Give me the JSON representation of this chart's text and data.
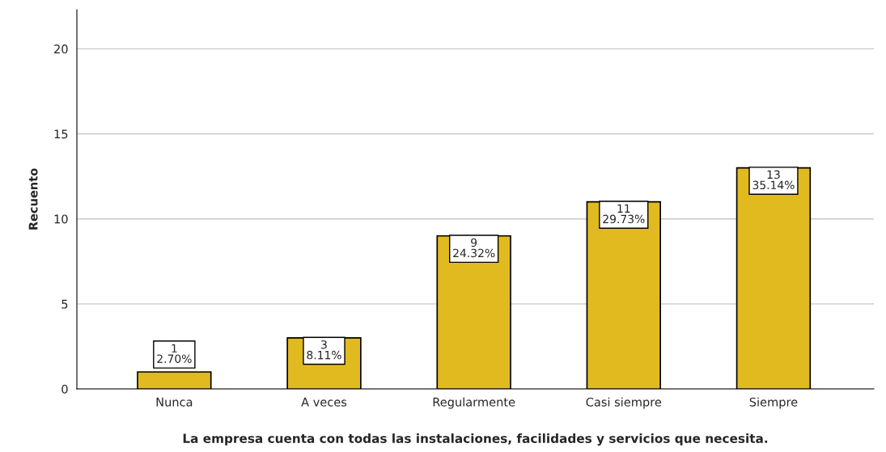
{
  "chart_data": {
    "type": "bar",
    "xlabel": "La empresa cuenta con todas las instalaciones, facilidades y servicios que necesita.",
    "ylabel": "Recuento",
    "categories": [
      "Nunca",
      "A veces",
      "Regularmente",
      "Casi siempre",
      "Siempre"
    ],
    "values": [
      1,
      3,
      9,
      11,
      13
    ],
    "color": "#e0ba1f",
    "value_labels": [
      "1\n2.70%",
      "3\n8.11%",
      "9\n24.32%",
      "11\n29.73%",
      "13\n35.14%"
    ],
    "ylim": [
      0,
      22.3
    ],
    "yticks": [
      0,
      5,
      10,
      15,
      20
    ],
    "grid": "y",
    "legend": false
  }
}
